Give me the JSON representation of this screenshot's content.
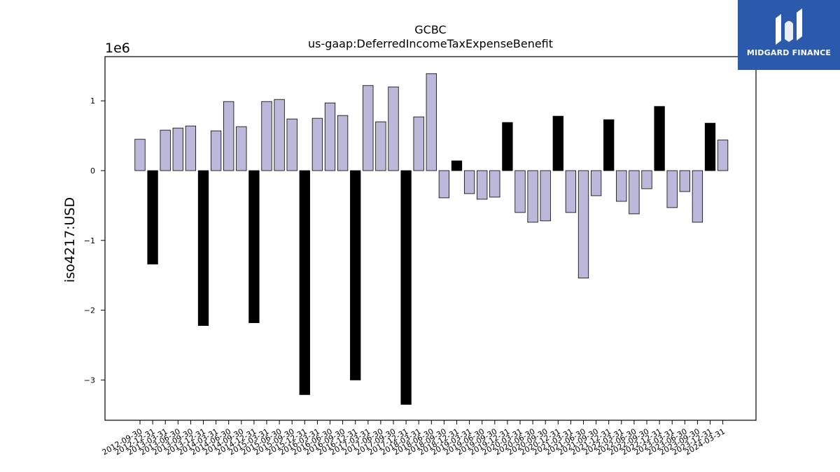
{
  "logo": {
    "text": "MIDGARD FINANCE"
  },
  "chart_data": {
    "type": "bar",
    "title": "GCBC",
    "subtitle": "us-gaap:DeferredIncomeTaxExpenseBenefit",
    "xlabel": "",
    "ylabel": "iso4217:USD",
    "y_scale_label": "1e6",
    "ylim": [
      -3.6,
      1.65
    ],
    "yticks": [
      -3,
      -2,
      -1,
      0,
      1
    ],
    "ytick_labels": [
      "−3",
      "−2",
      "−1",
      "0",
      "1"
    ],
    "grid": false,
    "colors": {
      "normal": "#bcb8da",
      "highlight": "#000000"
    },
    "categories": [
      "2012-09-30",
      "2012-12-31",
      "2013-03-31",
      "2013-06-30",
      "2013-09-30",
      "2013-12-31",
      "2014-03-31",
      "2014-06-30",
      "2014-09-30",
      "2014-12-31",
      "2015-03-31",
      "2015-06-30",
      "2015-09-30",
      "2015-12-31",
      "2016-03-31",
      "2016-06-30",
      "2016-09-30",
      "2016-12-31",
      "2017-03-31",
      "2017-06-30",
      "2017-09-30",
      "2017-12-31",
      "2018-03-31",
      "2018-06-30",
      "2018-09-30",
      "2018-12-31",
      "2019-03-31",
      "2019-06-30",
      "2019-09-30",
      "2019-12-31",
      "2020-03-31",
      "2020-06-30",
      "2020-09-30",
      "2020-12-31",
      "2021-03-31",
      "2021-06-30",
      "2021-09-30",
      "2021-12-31",
      "2022-03-31",
      "2022-06-30",
      "2022-09-30",
      "2022-12-31",
      "2023-03-31",
      "2023-06-30",
      "2023-09-30",
      "2023-12-31",
      "2024-03-31"
    ],
    "values": [
      0.45,
      -1.34,
      0.58,
      0.61,
      0.64,
      -2.22,
      0.57,
      0.99,
      0.63,
      -2.18,
      0.99,
      1.02,
      0.74,
      -3.21,
      0.75,
      0.97,
      0.79,
      -3.0,
      1.22,
      0.7,
      1.2,
      -3.35,
      0.77,
      1.39,
      -0.39,
      0.14,
      -0.33,
      -0.41,
      -0.38,
      0.69,
      -0.6,
      -0.74,
      -0.72,
      0.78,
      -0.6,
      -1.54,
      -0.36,
      0.73,
      -0.44,
      -0.62,
      -0.26,
      0.92,
      -0.53,
      -0.3,
      -0.74,
      0.68,
      0.44
    ],
    "highlighted": [
      false,
      true,
      false,
      false,
      false,
      true,
      false,
      false,
      false,
      true,
      false,
      false,
      false,
      true,
      false,
      false,
      false,
      true,
      false,
      false,
      false,
      true,
      false,
      false,
      false,
      true,
      false,
      false,
      false,
      true,
      false,
      false,
      false,
      true,
      false,
      false,
      false,
      true,
      false,
      false,
      false,
      true,
      false,
      false,
      false,
      true,
      false
    ]
  }
}
